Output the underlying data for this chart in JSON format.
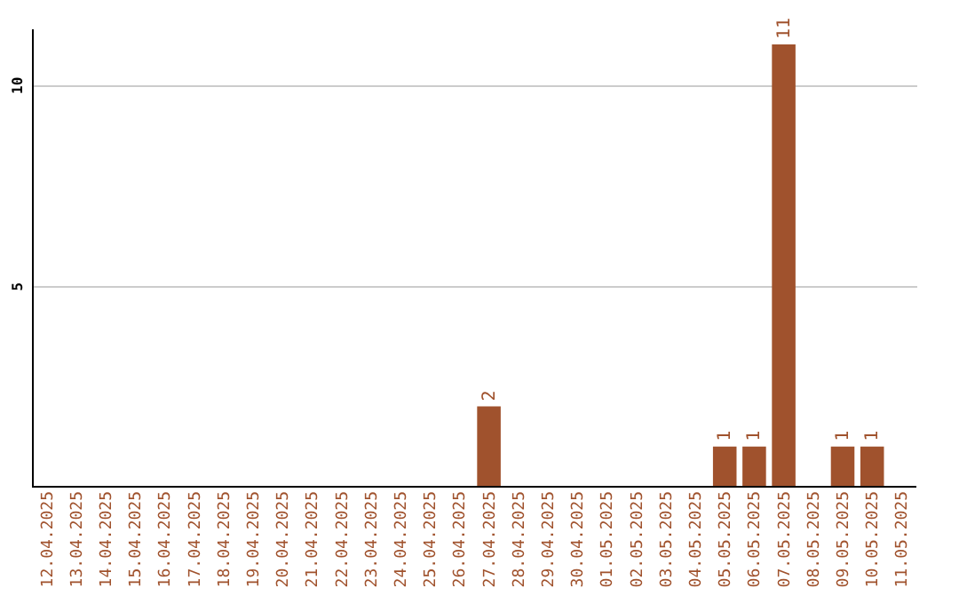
{
  "chart_data": {
    "type": "bar",
    "categories": [
      "12.04.2025",
      "13.04.2025",
      "14.04.2025",
      "15.04.2025",
      "16.04.2025",
      "17.04.2025",
      "18.04.2025",
      "19.04.2025",
      "20.04.2025",
      "21.04.2025",
      "22.04.2025",
      "23.04.2025",
      "24.04.2025",
      "25.04.2025",
      "26.04.2025",
      "27.04.2025",
      "28.04.2025",
      "29.04.2025",
      "30.04.2025",
      "01.05.2025",
      "02.05.2025",
      "03.05.2025",
      "04.05.2025",
      "05.05.2025",
      "06.05.2025",
      "07.05.2025",
      "08.05.2025",
      "09.05.2025",
      "10.05.2025",
      "11.05.2025"
    ],
    "values": [
      0,
      0,
      0,
      0,
      0,
      0,
      0,
      0,
      0,
      0,
      0,
      0,
      0,
      0,
      0,
      2,
      0,
      0,
      0,
      0,
      0,
      0,
      0,
      1,
      1,
      11,
      0,
      1,
      1,
      0
    ],
    "value_labels": [
      null,
      null,
      null,
      null,
      null,
      null,
      null,
      null,
      null,
      null,
      null,
      null,
      null,
      null,
      null,
      "2",
      null,
      null,
      null,
      null,
      null,
      null,
      null,
      "1",
      "1",
      "11",
      null,
      "1",
      "1",
      null
    ],
    "color": "#a0522d",
    "ylim": [
      0,
      11.4
    ],
    "yticks": [
      5,
      10
    ],
    "grid": "y"
  }
}
